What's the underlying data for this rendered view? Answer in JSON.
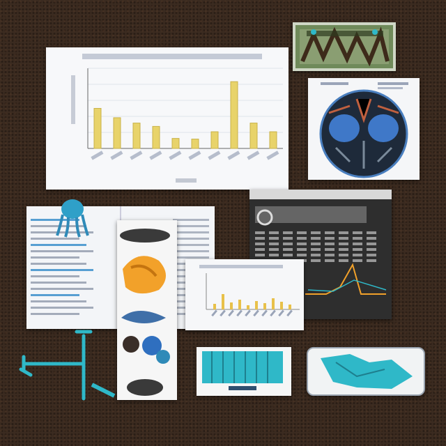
{
  "scene": {
    "colors": {
      "table": "#3b2b20",
      "paper": "#f4f6f8",
      "bar_yellow": "#e8d36a",
      "accent_cyan": "#2fb8c8",
      "accent_blue": "#2f6fbf",
      "dark_panel": "#2e2e2e",
      "orange": "#f2a12a"
    }
  },
  "chart_data": {
    "type": "bar",
    "values": [
      60,
      46,
      38,
      33,
      15,
      14,
      25,
      100,
      38,
      25
    ],
    "ylim": [
      0,
      120
    ],
    "grid": true,
    "legend": "none"
  }
}
